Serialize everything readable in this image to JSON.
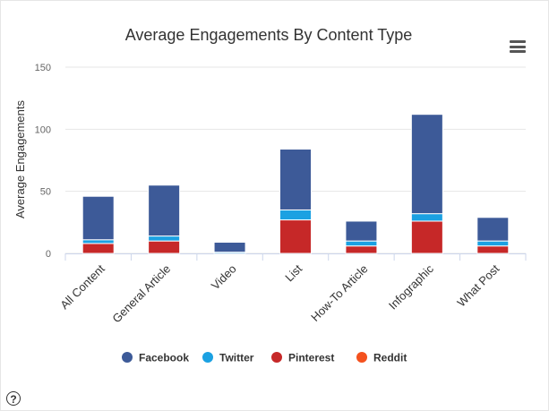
{
  "chart_data": {
    "type": "bar",
    "stacked": true,
    "title": "Average Engagements By Content Type",
    "ylabel": "Average Engagements",
    "xlabel": "",
    "ylim": [
      0,
      150
    ],
    "yticks": [
      0,
      50,
      100,
      150
    ],
    "grid": true,
    "legend_position": "bottom",
    "categories": [
      "All Content",
      "General Article",
      "Video",
      "List",
      "How-To Article",
      "Infographic",
      "What Post"
    ],
    "series": [
      {
        "name": "Pinterest",
        "color": "#c62828",
        "values": [
          8,
          10,
          0,
          27,
          6,
          26,
          6
        ]
      },
      {
        "name": "Twitter",
        "color": "#1ba1e2",
        "values": [
          3,
          4,
          1,
          8,
          4,
          6,
          4
        ]
      },
      {
        "name": "Facebook",
        "color": "#3d5a98",
        "values": [
          35,
          41,
          8,
          49,
          16,
          80,
          19
        ]
      },
      {
        "name": "Reddit",
        "color": "#f4511e",
        "values": [
          0,
          0,
          0,
          0,
          0,
          0,
          0
        ]
      }
    ],
    "legend_order": [
      "Facebook",
      "Twitter",
      "Pinterest",
      "Reddit"
    ]
  },
  "ui": {
    "menu_icon": "hamburger-menu-icon",
    "help_icon": "help-icon",
    "help_glyph": "?"
  }
}
